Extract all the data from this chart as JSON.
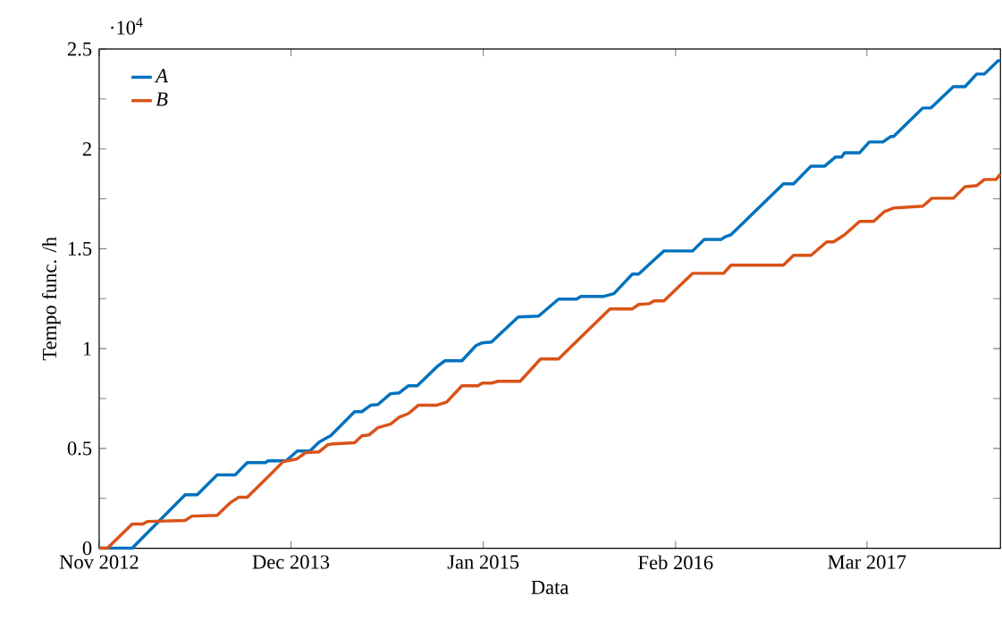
{
  "chart_data": {
    "type": "line",
    "xlabel": "Data",
    "ylabel": "Tempo func. /h",
    "annotations": [
      "·10$^{4}$"
    ],
    "xlim": [
      "2012-11-01",
      "2017-12-01"
    ],
    "xticks": [
      {
        "value": "2012-11-01",
        "label": "Nov 2012"
      },
      {
        "value": "2013-12-01",
        "label": "Dec 2013"
      },
      {
        "value": "2015-01-01",
        "label": "Jan 2015"
      },
      {
        "value": "2016-02-01",
        "label": "Feb 2016"
      },
      {
        "value": "2017-03-01",
        "label": "Mar 2017"
      }
    ],
    "ylim": [
      0,
      2.5
    ],
    "yticks": [
      0,
      {
        "value": 0.25,
        "label": null
      },
      0.5,
      {
        "value": 0.75,
        "label": null
      },
      1,
      {
        "value": 1.25,
        "label": null
      },
      1.5,
      {
        "value": 1.75,
        "label": null
      },
      2,
      {
        "value": 2.25,
        "label": null
      },
      2.5
    ],
    "legend": "top left",
    "line_style": "solid",
    "series": [
      {
        "name": "A",
        "color": "#0072bd",
        "x": [
          "2012-11-01",
          "2013-01-08",
          "2013-04-27",
          "2013-05-22",
          "2013-07-02",
          "2013-08-08",
          "2013-09-02",
          "2013-10-09",
          "2013-10-15",
          "2013-11-21",
          "2013-12-14",
          "2014-01-09",
          "2014-01-28",
          "2014-02-21",
          "2014-04-11",
          "2014-04-26",
          "2014-05-14",
          "2014-05-29",
          "2014-06-24",
          "2014-07-12",
          "2014-07-31",
          "2014-08-18",
          "2014-09-29",
          "2014-10-14",
          "2014-11-18",
          "2014-12-17",
          "2014-12-30",
          "2015-01-18",
          "2015-03-14",
          "2015-04-25",
          "2015-06-05",
          "2015-07-12",
          "2015-07-21",
          "2015-09-05",
          "2015-09-27",
          "2015-11-04",
          "2015-11-17",
          "2015-12-15",
          "2016-01-08",
          "2016-03-07",
          "2016-03-31",
          "2016-05-05",
          "2016-05-14",
          "2016-05-25",
          "2016-09-10",
          "2016-10-01",
          "2016-11-06",
          "2016-12-04",
          "2016-12-26",
          "2017-01-08",
          "2017-01-14",
          "2017-02-14",
          "2017-03-06",
          "2017-04-03",
          "2017-04-19",
          "2017-04-25",
          "2017-06-24",
          "2017-07-11",
          "2017-08-26",
          "2017-09-19",
          "2017-10-13",
          "2017-10-29",
          "2017-11-26",
          "2017-12-01"
        ],
        "values": [
          0,
          0,
          0.268,
          0.268,
          0.367,
          0.367,
          0.429,
          0.429,
          0.438,
          0.438,
          0.487,
          0.487,
          0.532,
          0.564,
          0.684,
          0.684,
          0.716,
          0.72,
          0.774,
          0.778,
          0.814,
          0.814,
          0.912,
          0.939,
          0.939,
          1.015,
          1.029,
          1.033,
          1.158,
          1.163,
          1.248,
          1.248,
          1.261,
          1.261,
          1.275,
          1.373,
          1.373,
          1.436,
          1.489,
          1.489,
          1.547,
          1.547,
          1.561,
          1.57,
          1.825,
          1.825,
          1.914,
          1.914,
          1.959,
          1.959,
          1.981,
          1.981,
          2.035,
          2.035,
          2.062,
          2.062,
          2.205,
          2.205,
          2.312,
          2.312,
          2.375,
          2.375,
          2.442,
          2.442
        ]
      },
      {
        "name": "B",
        "color": "#d95319",
        "x": [
          "2012-11-01",
          "2012-11-18",
          "2013-01-08",
          "2013-01-30",
          "2013-02-08",
          "2013-04-27",
          "2013-05-11",
          "2013-07-02",
          "2013-07-29",
          "2013-08-15",
          "2013-09-02",
          "2013-10-09",
          "2013-11-15",
          "2013-12-13",
          "2013-12-31",
          "2014-01-28",
          "2014-02-15",
          "2014-02-26",
          "2014-04-11",
          "2014-04-26",
          "2014-05-11",
          "2014-05-29",
          "2014-06-24",
          "2014-07-12",
          "2014-07-31",
          "2014-08-20",
          "2014-09-26",
          "2014-10-18",
          "2014-11-18",
          "2014-12-21",
          "2014-12-30",
          "2015-01-18",
          "2015-01-31",
          "2015-03-18",
          "2015-04-29",
          "2015-06-05",
          "2015-08-27",
          "2015-09-19",
          "2015-11-04",
          "2015-11-17",
          "2015-12-09",
          "2015-12-19",
          "2016-01-08",
          "2016-03-07",
          "2016-05-10",
          "2016-05-25",
          "2016-09-10",
          "2016-10-01",
          "2016-11-06",
          "2016-12-08",
          "2016-12-22",
          "2017-01-14",
          "2017-02-14",
          "2017-03-15",
          "2017-04-06",
          "2017-04-25",
          "2017-06-24",
          "2017-07-13",
          "2017-08-26",
          "2017-09-19",
          "2017-10-13",
          "2017-10-29",
          "2017-11-22",
          "2017-12-01"
        ],
        "values": [
          0,
          0,
          0.121,
          0.121,
          0.134,
          0.139,
          0.161,
          0.165,
          0.228,
          0.255,
          0.255,
          0.344,
          0.434,
          0.447,
          0.479,
          0.483,
          0.519,
          0.523,
          0.528,
          0.563,
          0.568,
          0.604,
          0.622,
          0.657,
          0.675,
          0.716,
          0.716,
          0.733,
          0.814,
          0.814,
          0.827,
          0.827,
          0.836,
          0.836,
          0.948,
          0.948,
          1.145,
          1.199,
          1.199,
          1.221,
          1.225,
          1.239,
          1.239,
          1.377,
          1.377,
          1.418,
          1.418,
          1.467,
          1.467,
          1.534,
          1.534,
          1.57,
          1.637,
          1.637,
          1.686,
          1.704,
          1.713,
          1.753,
          1.753,
          1.811,
          1.816,
          1.847,
          1.847,
          1.874
        ]
      }
    ]
  }
}
